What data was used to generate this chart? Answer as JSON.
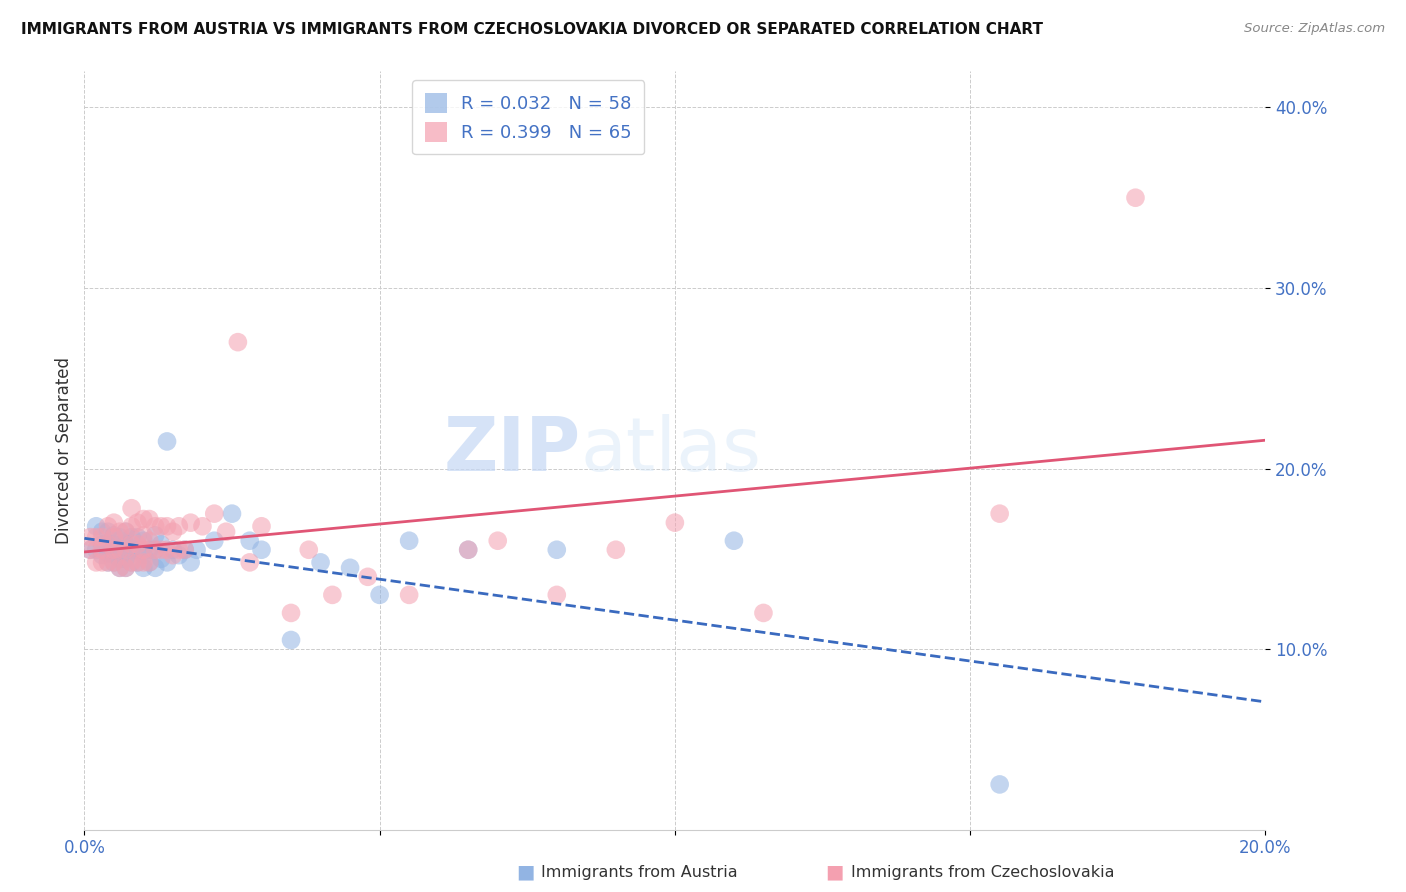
{
  "title": "IMMIGRANTS FROM AUSTRIA VS IMMIGRANTS FROM CZECHOSLOVAKIA DIVORCED OR SEPARATED CORRELATION CHART",
  "source": "Source: ZipAtlas.com",
  "xlabel_left": "Immigrants from Austria",
  "xlabel_right": "Immigrants from Czechoslovakia",
  "ylabel": "Divorced or Separated",
  "xlim": [
    0.0,
    0.2
  ],
  "ylim": [
    0.0,
    0.42
  ],
  "yticks": [
    0.1,
    0.2,
    0.3,
    0.4
  ],
  "xticks": [
    0.0,
    0.05,
    0.1,
    0.15,
    0.2
  ],
  "ytick_labels": [
    "10.0%",
    "20.0%",
    "30.0%",
    "40.0%"
  ],
  "xtick_labels": [
    "0.0%",
    "",
    "",
    "",
    "20.0%"
  ],
  "legend_r1": "R = 0.032",
  "legend_n1": "N = 58",
  "legend_r2": "R = 0.399",
  "legend_n2": "N = 65",
  "austria_color": "#92b4e3",
  "czech_color": "#f4a0b0",
  "line_austria_color": "#3a6abf",
  "line_czech_color": "#e05575",
  "watermark_zip": "ZIP",
  "watermark_atlas": "atlas",
  "background_color": "#ffffff",
  "austria_scatter_x": [
    0.001,
    0.002,
    0.002,
    0.003,
    0.003,
    0.003,
    0.004,
    0.004,
    0.004,
    0.004,
    0.005,
    0.005,
    0.005,
    0.005,
    0.006,
    0.006,
    0.006,
    0.006,
    0.007,
    0.007,
    0.007,
    0.007,
    0.008,
    0.008,
    0.008,
    0.009,
    0.009,
    0.009,
    0.01,
    0.01,
    0.01,
    0.011,
    0.011,
    0.012,
    0.012,
    0.012,
    0.013,
    0.013,
    0.014,
    0.014,
    0.015,
    0.016,
    0.017,
    0.018,
    0.019,
    0.022,
    0.025,
    0.028,
    0.03,
    0.035,
    0.04,
    0.045,
    0.05,
    0.055,
    0.065,
    0.08,
    0.11,
    0.155
  ],
  "austria_scatter_y": [
    0.155,
    0.155,
    0.168,
    0.152,
    0.158,
    0.165,
    0.148,
    0.153,
    0.158,
    0.165,
    0.148,
    0.152,
    0.158,
    0.163,
    0.145,
    0.15,
    0.155,
    0.162,
    0.145,
    0.15,
    0.158,
    0.165,
    0.148,
    0.155,
    0.162,
    0.148,
    0.155,
    0.162,
    0.145,
    0.152,
    0.16,
    0.148,
    0.155,
    0.145,
    0.155,
    0.163,
    0.15,
    0.158,
    0.148,
    0.215,
    0.155,
    0.152,
    0.155,
    0.148,
    0.155,
    0.16,
    0.175,
    0.16,
    0.155,
    0.105,
    0.148,
    0.145,
    0.13,
    0.16,
    0.155,
    0.155,
    0.16,
    0.025
  ],
  "czech_scatter_x": [
    0.001,
    0.001,
    0.002,
    0.002,
    0.003,
    0.003,
    0.003,
    0.004,
    0.004,
    0.004,
    0.005,
    0.005,
    0.005,
    0.005,
    0.006,
    0.006,
    0.006,
    0.007,
    0.007,
    0.007,
    0.008,
    0.008,
    0.008,
    0.008,
    0.009,
    0.009,
    0.009,
    0.01,
    0.01,
    0.01,
    0.01,
    0.011,
    0.011,
    0.011,
    0.012,
    0.012,
    0.013,
    0.013,
    0.014,
    0.014,
    0.015,
    0.015,
    0.016,
    0.016,
    0.017,
    0.018,
    0.02,
    0.022,
    0.024,
    0.026,
    0.028,
    0.03,
    0.035,
    0.038,
    0.042,
    0.048,
    0.055,
    0.065,
    0.07,
    0.08,
    0.09,
    0.1,
    0.115,
    0.155,
    0.178
  ],
  "czech_scatter_y": [
    0.155,
    0.162,
    0.148,
    0.162,
    0.148,
    0.155,
    0.162,
    0.148,
    0.158,
    0.168,
    0.148,
    0.155,
    0.162,
    0.17,
    0.145,
    0.155,
    0.165,
    0.145,
    0.155,
    0.165,
    0.148,
    0.158,
    0.168,
    0.178,
    0.148,
    0.158,
    0.17,
    0.148,
    0.155,
    0.163,
    0.172,
    0.148,
    0.16,
    0.172,
    0.155,
    0.168,
    0.155,
    0.168,
    0.155,
    0.168,
    0.152,
    0.165,
    0.155,
    0.168,
    0.155,
    0.17,
    0.168,
    0.175,
    0.165,
    0.27,
    0.148,
    0.168,
    0.12,
    0.155,
    0.13,
    0.14,
    0.13,
    0.155,
    0.16,
    0.13,
    0.155,
    0.17,
    0.12,
    0.175,
    0.35
  ]
}
